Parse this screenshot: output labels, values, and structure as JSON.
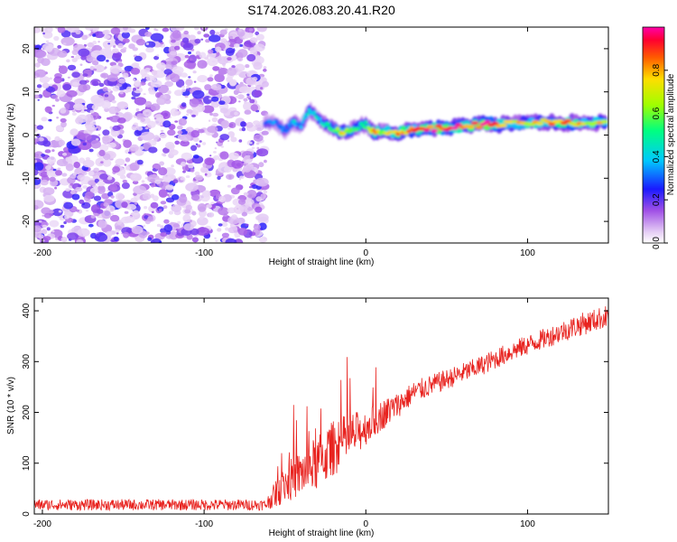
{
  "title": "S174.2026.083.20.41.R20",
  "colorbar": {
    "label": "Normalized spectral amplitude",
    "range": [
      0.0,
      1.0
    ],
    "ticks": [
      "0.0",
      "0.2",
      "0.4",
      "0.6",
      "0.8"
    ]
  },
  "chart_data": [
    {
      "type": "heatmap",
      "name": "spectrogram",
      "xlabel": "Height of straight line (km)",
      "ylabel": "Frequency (Hz)",
      "xlim": [
        -205,
        150
      ],
      "ylim": [
        -25,
        25
      ],
      "xticks": [
        "-200",
        "-100",
        "0",
        "100"
      ],
      "yticks": [
        "20",
        "10",
        "0",
        "-10",
        "-20"
      ],
      "noise_region_x": [
        -205,
        -62
      ],
      "ridge": {
        "x": [
          -62,
          -55,
          -50,
          -45,
          -40,
          -35,
          -30,
          -25,
          -20,
          -15,
          -10,
          -5,
          0,
          5,
          10,
          20,
          30,
          45,
          60,
          75,
          90,
          105,
          120,
          135,
          150
        ],
        "freq": [
          3.0,
          2.5,
          1.0,
          3.0,
          2.0,
          6.0,
          4.0,
          2.5,
          1.5,
          0.5,
          1.0,
          2.0,
          2.5,
          0.5,
          1.0,
          0.5,
          1.2,
          1.5,
          2.0,
          2.5,
          2.5,
          3.0,
          2.8,
          2.8,
          3.0
        ],
        "amp": [
          0.3,
          0.35,
          0.3,
          0.4,
          0.35,
          0.45,
          0.4,
          0.45,
          0.5,
          0.75,
          0.55,
          0.5,
          0.5,
          0.8,
          0.6,
          0.9,
          0.8,
          0.95,
          0.9,
          0.95,
          0.7,
          0.75,
          0.85,
          0.7,
          0.75
        ]
      }
    },
    {
      "type": "line",
      "name": "snr",
      "xlabel": "Height of straight line (km)",
      "ylabel": "SNR (10 * v/v)",
      "xlim": [
        -205,
        150
      ],
      "ylim": [
        0,
        425
      ],
      "xticks": [
        "-200",
        "-100",
        "0",
        "100"
      ],
      "yticks": [
        "0",
        "100",
        "200",
        "300",
        "400"
      ],
      "color": "#e8231f",
      "series": [
        {
          "name": "SNR",
          "x": [
            -205,
            -62,
            -50,
            -40,
            -30,
            -20,
            -10,
            0,
            10,
            20,
            30,
            50,
            70,
            90,
            110,
            130,
            150
          ],
          "base": [
            18,
            18,
            60,
            80,
            100,
            130,
            150,
            170,
            195,
            215,
            240,
            265,
            290,
            320,
            345,
            370,
            390
          ],
          "spread": [
            22,
            22,
            80,
            90,
            110,
            110,
            100,
            70,
            60,
            50,
            45,
            40,
            40,
            40,
            40,
            45,
            45
          ]
        }
      ]
    }
  ]
}
